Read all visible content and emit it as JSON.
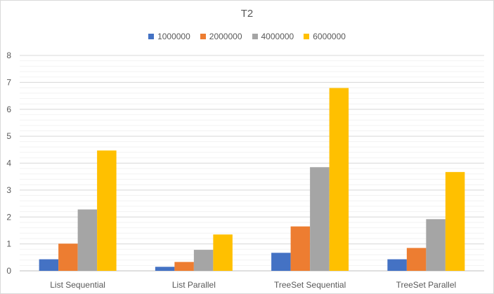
{
  "chart_data": {
    "type": "bar",
    "title": "T2",
    "categories": [
      "List Sequential",
      "List Parallel",
      "TreeSet Sequential",
      "TreeSet Parallel"
    ],
    "series": [
      {
        "name": "1000000",
        "color": "#4472c4",
        "values": [
          0.43,
          0.15,
          0.67,
          0.43
        ]
      },
      {
        "name": "2000000",
        "color": "#ed7d31",
        "values": [
          1.01,
          0.33,
          1.65,
          0.85
        ]
      },
      {
        "name": "4000000",
        "color": "#a5a5a5",
        "values": [
          2.28,
          0.78,
          3.85,
          1.92
        ]
      },
      {
        "name": "6000000",
        "color": "#ffc000",
        "values": [
          4.47,
          1.35,
          6.79,
          3.67
        ]
      }
    ],
    "ylim": [
      0,
      8
    ],
    "yticks": [
      "0",
      "1",
      "2",
      "3",
      "4",
      "5",
      "6",
      "7",
      "8"
    ],
    "ytick_values": [
      0,
      1,
      2,
      3,
      4,
      5,
      6,
      7,
      8
    ],
    "minor_grid_step": 0.2,
    "xlabel": "",
    "ylabel": "",
    "legend_position": "top",
    "grid": true
  }
}
